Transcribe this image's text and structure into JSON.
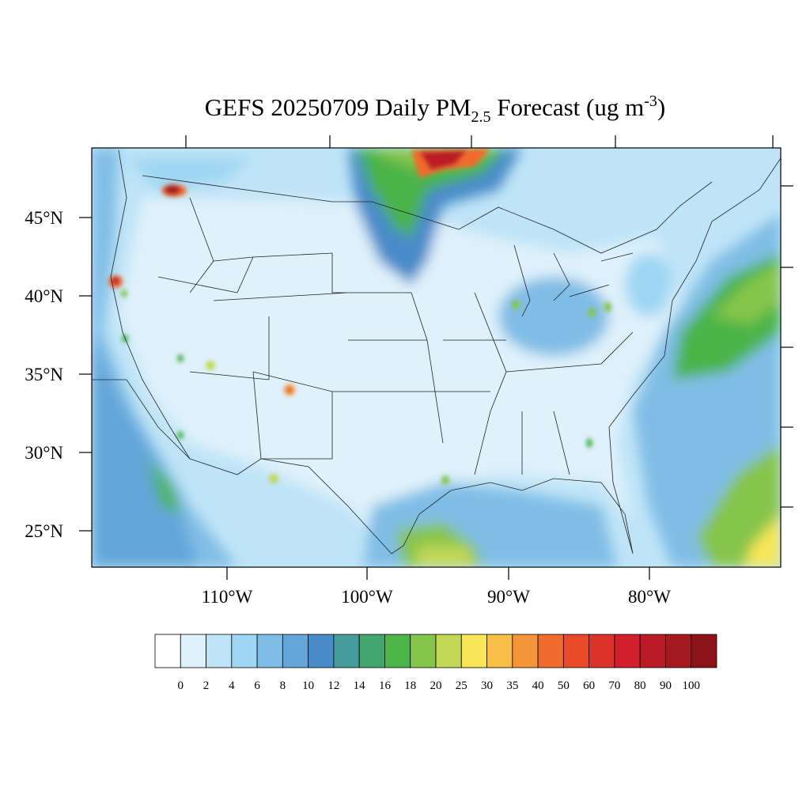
{
  "title": {
    "main": "GEFS 20250709 Daily PM",
    "subscript": "2.5",
    "middle": " Forecast (ug m",
    "superscript": "-3",
    "end": ")"
  },
  "lat_labels": [
    "45°N",
    "40°N",
    "35°N",
    "30°N",
    "25°N"
  ],
  "lon_labels": [
    "110°W",
    "100°W",
    "90°W",
    "80°W"
  ],
  "colorbar": {
    "colors": [
      "#ffffff",
      "#dff1fb",
      "#bfe4f7",
      "#9fd6f3",
      "#80bde6",
      "#64a6da",
      "#4a8bc9",
      "#469c9c",
      "#43a66e",
      "#4cb449",
      "#86c54b",
      "#c3d756",
      "#f8e658",
      "#f8be48",
      "#f5953a",
      "#f06b2d",
      "#e84a2a",
      "#dc332a",
      "#d21f2e",
      "#bb1a27",
      "#a51a20",
      "#8c1419"
    ],
    "labels": [
      0,
      2,
      4,
      6,
      8,
      10,
      12,
      14,
      16,
      18,
      20,
      25,
      30,
      35,
      40,
      50,
      60,
      70,
      80,
      90,
      100
    ]
  }
}
